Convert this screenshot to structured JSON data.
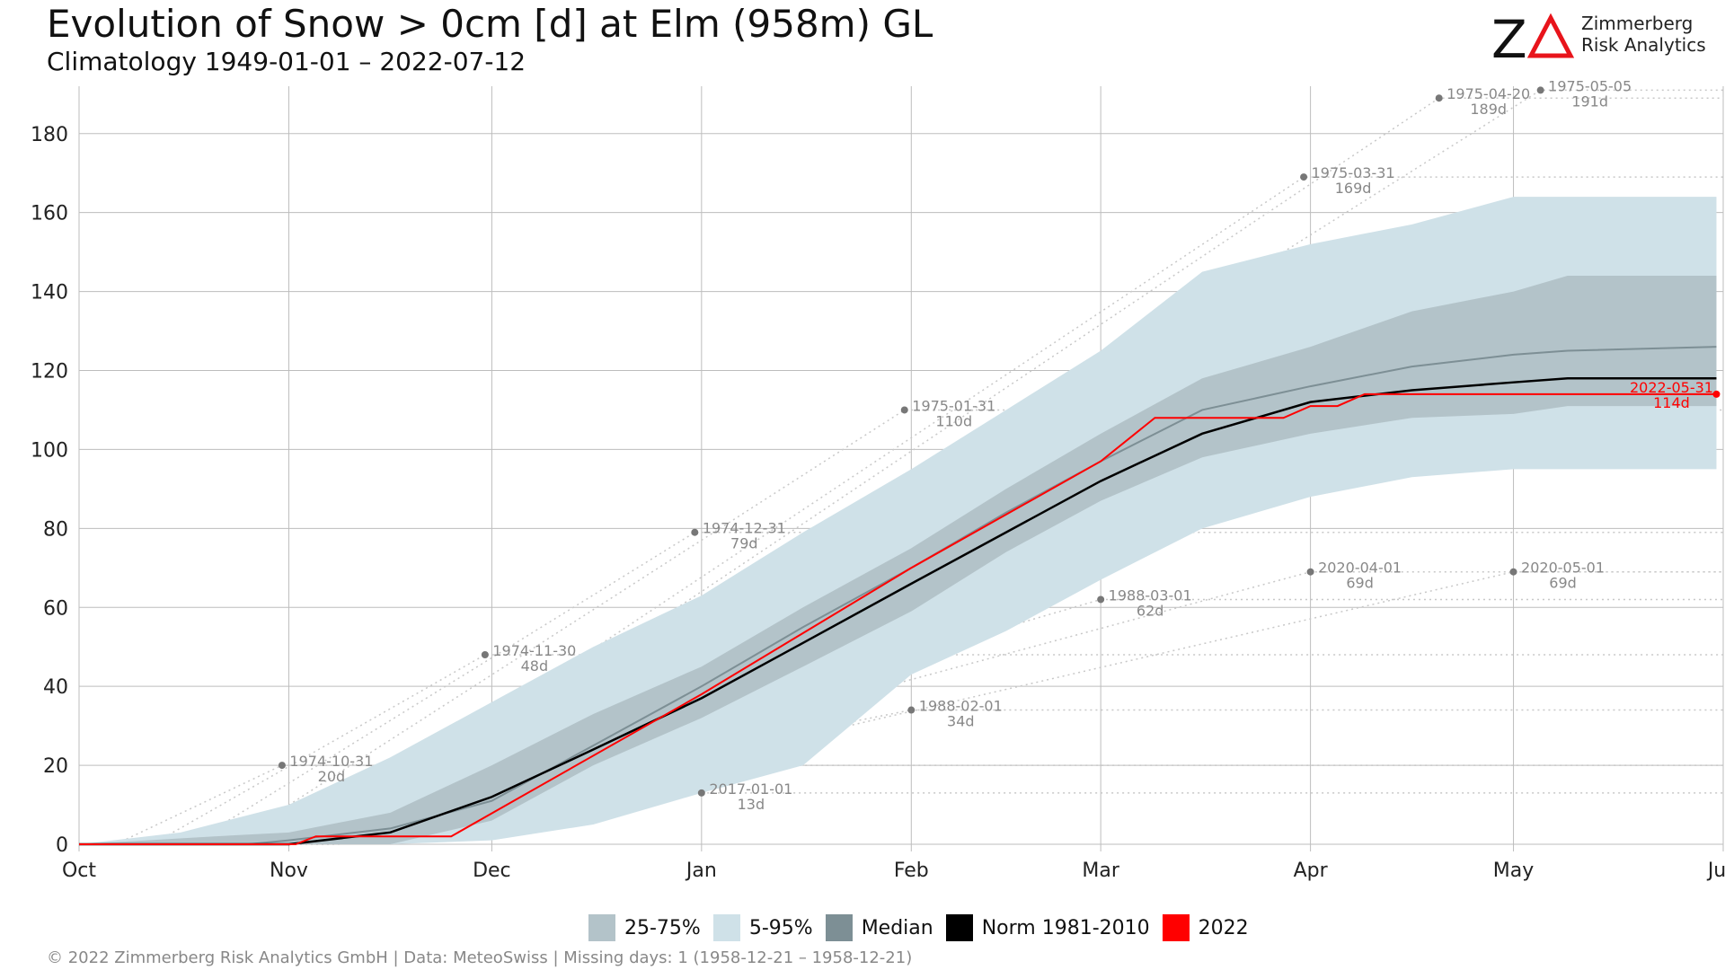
{
  "header": {
    "title": "Evolution of Snow > 0cm [d] at Elm (958m) GL",
    "subtitle": "Climatology 1949-01-01 – 2022-07-12"
  },
  "logo": {
    "mark": "ZΔ",
    "line1": "Zimmerberg",
    "line2": "Risk Analytics",
    "accent_color": "#e8141b"
  },
  "footer": "©  2022 Zimmerberg Risk Analytics GmbH | Data: MeteoSwiss | Missing days: 1 (1958-12-21 – 1958-12-21)",
  "legend": [
    {
      "label": "25-75%",
      "color": "#b3c3c9"
    },
    {
      "label": "5-95%",
      "color": "#cfe1e8"
    },
    {
      "label": "Median",
      "color": "#7d8f95"
    },
    {
      "label": "Norm 1981-2010",
      "color": "#000000"
    },
    {
      "label": "2022",
      "color": "#ff0000"
    }
  ],
  "chart_data": {
    "type": "area",
    "title": "Evolution of Snow > 0cm [d] at Elm (958m) GL",
    "subtitle": "Climatology 1949-01-01 – 2022-07-12",
    "xlabel": "",
    "ylabel": "",
    "x_ticks": [
      "Oct",
      "Nov",
      "Dec",
      "Jan",
      "Feb",
      "Mar",
      "Apr",
      "May",
      "Jun"
    ],
    "x_tick_days": [
      0,
      31,
      61,
      92,
      123,
      151,
      182,
      212,
      243
    ],
    "y_ticks": [
      0,
      20,
      40,
      60,
      80,
      100,
      120,
      140,
      160,
      180
    ],
    "ylim": [
      0,
      192
    ],
    "xlim": [
      0,
      243
    ],
    "grid": true,
    "legend_position": "bottom",
    "colors": {
      "q05_95": "#cfe1e8",
      "q25_75": "#b3c3c9",
      "median": "#7d8f95",
      "norm": "#000000",
      "year2022": "#ff0000",
      "extremes": "#888888"
    },
    "series": [
      {
        "name": "5-95%",
        "kind": "band",
        "x": [
          0,
          15,
          31,
          46,
          61,
          76,
          92,
          107,
          123,
          137,
          151,
          166,
          182,
          197,
          212,
          220,
          242
        ],
        "lower": [
          0,
          0,
          0,
          0,
          1,
          5,
          13,
          20,
          43,
          54,
          67,
          80,
          88,
          93,
          95,
          95,
          95
        ],
        "upper": [
          0,
          3,
          10,
          22,
          36,
          50,
          63,
          79,
          95,
          110,
          125,
          145,
          152,
          157,
          164,
          164,
          164
        ]
      },
      {
        "name": "25-75%",
        "kind": "band",
        "x": [
          0,
          20,
          31,
          46,
          61,
          76,
          92,
          107,
          123,
          137,
          151,
          166,
          182,
          197,
          212,
          220,
          242
        ],
        "lower": [
          0,
          0,
          0,
          0,
          6,
          20,
          32,
          45,
          59,
          74,
          87,
          98,
          104,
          108,
          109,
          111,
          111
        ],
        "upper": [
          0,
          2,
          3,
          8,
          20,
          33,
          45,
          60,
          75,
          90,
          104,
          118,
          126,
          135,
          140,
          144,
          144
        ]
      },
      {
        "name": "Median",
        "kind": "line",
        "x": [
          0,
          25,
          31,
          46,
          61,
          76,
          92,
          107,
          123,
          137,
          151,
          166,
          182,
          197,
          212,
          220,
          242
        ],
        "values": [
          0,
          0,
          1,
          4,
          11,
          25,
          40,
          55,
          70,
          84,
          97,
          110,
          116,
          121,
          124,
          125,
          126
        ]
      },
      {
        "name": "Norm 1981-2010",
        "kind": "line",
        "x": [
          0,
          31,
          46,
          61,
          76,
          92,
          107,
          123,
          137,
          151,
          166,
          182,
          197,
          212,
          220,
          242
        ],
        "values": [
          0,
          0,
          3,
          12,
          24,
          37,
          51,
          66,
          79,
          92,
          104,
          112,
          115,
          117,
          118,
          118
        ]
      },
      {
        "name": "2022",
        "kind": "line",
        "x": [
          0,
          32,
          35,
          54,
          55,
          92,
          123,
          151,
          159,
          178,
          182,
          186,
          190,
          242
        ],
        "values": [
          0,
          0,
          2,
          2,
          2,
          38,
          70,
          97,
          108,
          108,
          111,
          111,
          114,
          114
        ]
      }
    ],
    "annotations": [
      {
        "date": "1974-10-31",
        "value": 20,
        "label": "20d",
        "x": 30
      },
      {
        "date": "1974-11-30",
        "value": 48,
        "label": "48d",
        "x": 60
      },
      {
        "date": "1974-12-31",
        "value": 79,
        "label": "79d",
        "x": 91
      },
      {
        "date": "1975-01-31",
        "value": 110,
        "label": "110d",
        "x": 122
      },
      {
        "date": "1975-03-31",
        "value": 169,
        "label": "169d",
        "x": 181
      },
      {
        "date": "1975-04-20",
        "value": 189,
        "label": "189d",
        "x": 201
      },
      {
        "date": "1975-05-05",
        "value": 191,
        "label": "191d",
        "x": 216
      },
      {
        "date": "2017-01-01",
        "value": 13,
        "label": "13d",
        "x": 92
      },
      {
        "date": "1988-02-01",
        "value": 34,
        "label": "34d",
        "x": 123
      },
      {
        "date": "1988-03-01",
        "value": 62,
        "label": "62d",
        "x": 151
      },
      {
        "date": "2020-04-01",
        "value": 69,
        "label": "69d",
        "x": 182
      },
      {
        "date": "2020-05-01",
        "value": 69,
        "label": "69d",
        "x": 212
      }
    ],
    "current": {
      "date": "2022-05-31",
      "value": 114,
      "label": "114d",
      "x": 242
    }
  }
}
